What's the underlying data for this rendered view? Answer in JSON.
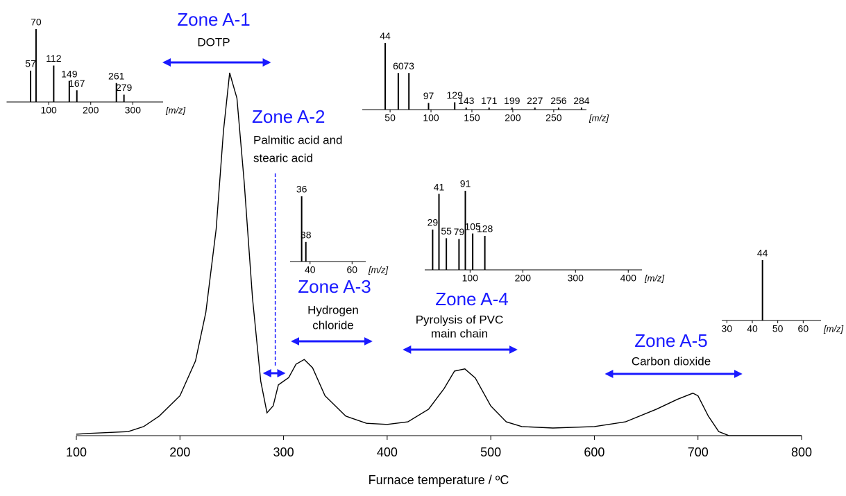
{
  "chart_data": [
    {
      "type": "line",
      "xlabel": "Furnace temperature / ºC",
      "color": "#000000",
      "x": [
        100,
        110,
        150,
        165,
        180,
        200,
        215,
        225,
        235,
        242,
        248,
        255,
        262,
        270,
        278,
        284,
        290,
        295,
        300,
        305,
        312,
        320,
        328,
        340,
        360,
        380,
        400,
        420,
        440,
        455,
        465,
        475,
        485,
        500,
        515,
        530,
        560,
        600,
        630,
        660,
        680,
        695,
        700,
        710,
        720,
        730,
        800
      ],
      "values": [
        0.4,
        0.6,
        1.1,
        2.5,
        5.4,
        11,
        20.6,
        34,
        57,
        84,
        100,
        93,
        70,
        38,
        15,
        6.3,
        8.2,
        14,
        15,
        16,
        19.7,
        21,
        18.7,
        11,
        5.4,
        3.4,
        3.1,
        3.8,
        7.3,
        13,
        17.8,
        18.4,
        15.9,
        8.2,
        3.8,
        2.5,
        2.1,
        2.5,
        3.8,
        7.3,
        10,
        11.7,
        11,
        5.4,
        1.1,
        0,
        0
      ],
      "xlim": [
        100,
        800
      ],
      "xticks": [
        100,
        200,
        300,
        400,
        500,
        600,
        700,
        800
      ],
      "ylim": [
        0,
        100
      ],
      "annotation_color": "#1a1aff",
      "annotations": [
        {
          "title": "Zone A-1",
          "lines": [
            "DOTP"
          ],
          "range": [
            182,
            289
          ]
        },
        {
          "title": "Zone A-2",
          "lines": [
            "Palmitic acid and",
            "stearic acid"
          ],
          "range": [
            279,
            303
          ],
          "marker": 292
        },
        {
          "title": "Zone A-3",
          "lines": [
            "Hydrogen",
            "chloride"
          ],
          "range": [
            306,
            387
          ]
        },
        {
          "title": "Zone A-4",
          "lines": [
            "Pyrolysis of PVC",
            "main chain"
          ],
          "range": [
            414,
            527
          ]
        },
        {
          "title": "Zone A-5",
          "lines": [
            "Carbon dioxide"
          ],
          "range": [
            609,
            744
          ]
        }
      ]
    },
    {
      "type": "spectrum",
      "xlabel": "[m/z]",
      "xlim": [
        0,
        372
      ],
      "xticks": [
        100,
        200,
        300
      ],
      "ylim": [
        0,
        100
      ],
      "x": [
        57,
        70,
        112,
        149,
        167,
        261,
        279
      ],
      "values": [
        43,
        100,
        50,
        29,
        16,
        26,
        10
      ]
    },
    {
      "type": "spectrum",
      "xlabel": "[m/z]",
      "xlim": [
        16,
        290
      ],
      "xticks": [
        50,
        100,
        150,
        200,
        250
      ],
      "ylim": [
        0,
        100
      ],
      "x": [
        44,
        60,
        73,
        97,
        129,
        143,
        171,
        199,
        227,
        256,
        284
      ],
      "values": [
        100,
        55,
        55,
        10,
        11,
        3,
        3,
        3,
        3,
        3,
        3
      ]
    },
    {
      "type": "spectrum",
      "xlabel": "[m/z]",
      "xlim": [
        30.5,
        66.5
      ],
      "xticks": [
        40,
        60
      ],
      "ylim": [
        0,
        100
      ],
      "x": [
        36,
        38
      ],
      "values": [
        100,
        30
      ]
    },
    {
      "type": "spectrum",
      "xlabel": "[m/z]",
      "xlim": [
        14,
        426
      ],
      "xticks": [
        100,
        200,
        300,
        400
      ],
      "ylim": [
        0,
        100
      ],
      "x": [
        29,
        41,
        55,
        79,
        91,
        105,
        128
      ],
      "values": [
        51,
        96,
        40,
        39,
        100,
        46,
        43
      ]
    },
    {
      "type": "spectrum",
      "xlabel": "[m/z]",
      "xlim": [
        28,
        67
      ],
      "xticks": [
        30,
        40,
        50,
        60
      ],
      "ylim": [
        0,
        100
      ],
      "x": [
        44
      ],
      "values": [
        100
      ]
    }
  ]
}
